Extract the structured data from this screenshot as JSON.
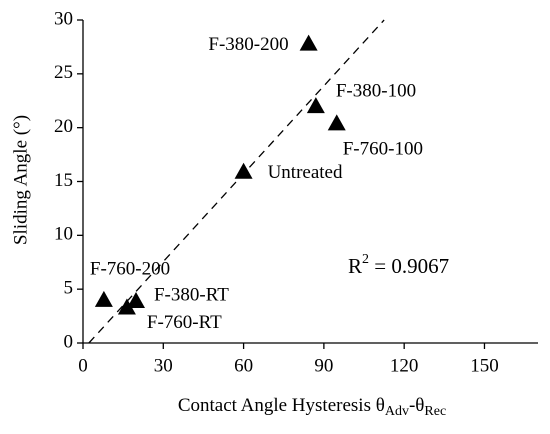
{
  "chart_data": {
    "type": "scatter",
    "x_label": {
      "text": "Contact Angle Hysteresis θ",
      "sub_1": "Adv",
      "middle": "-θ",
      "sub_2": "Rec"
    },
    "y_label": "Sliding Angle (°)",
    "xlim": [
      0,
      170
    ],
    "xticks": [
      0,
      30,
      60,
      90,
      120,
      150
    ],
    "ylim": [
      0,
      30
    ],
    "yticks": [
      0,
      5,
      10,
      15,
      20,
      25,
      30
    ],
    "grid": false,
    "series": [
      {
        "labels": [
          "F-380-200",
          "F-380-100",
          "F-760-100",
          "Untreated",
          "F-760-200",
          "F-380-RT",
          "F-760-RT"
        ],
        "x": [
          84.3,
          87,
          94.8,
          60,
          7.8,
          19.8,
          16.4
        ],
        "values": [
          27.8,
          22,
          20.4,
          15.9,
          4,
          3.9,
          3.3
        ],
        "color": "#000000",
        "marker": "triangle"
      }
    ],
    "trendline": {
      "x": [
        2.2,
        112.5
      ],
      "values": [
        0,
        30
      ],
      "color": "#000000",
      "dash": true
    },
    "annotation": {
      "text": "R",
      "sup": "2",
      "rest": " = 0.9067"
    }
  }
}
